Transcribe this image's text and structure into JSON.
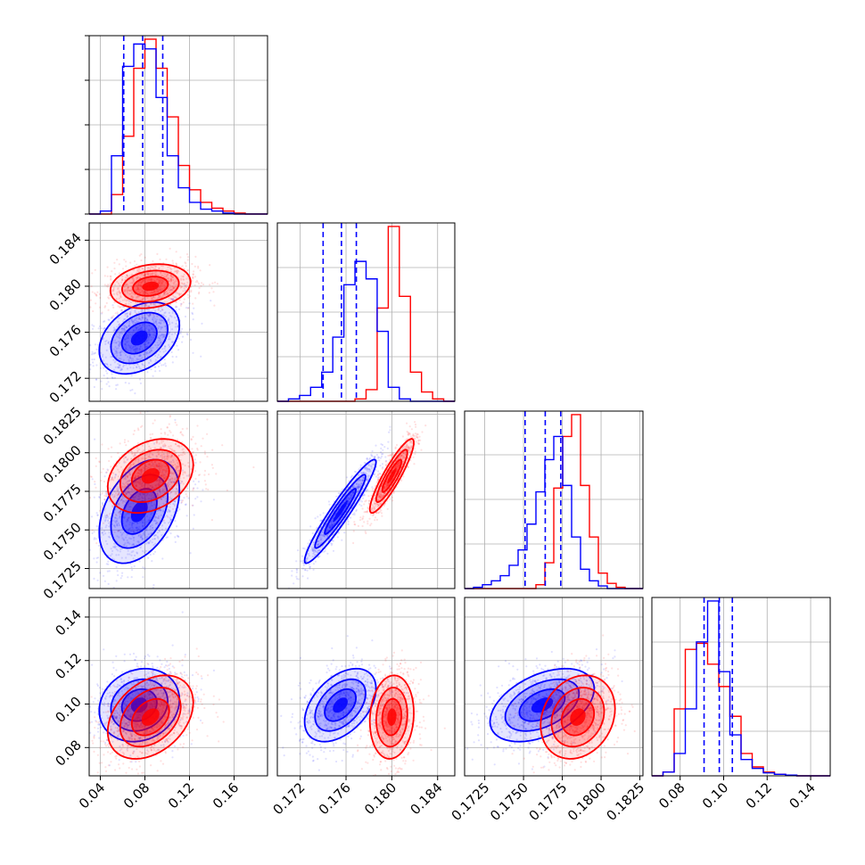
{
  "chart_data": {
    "type": "corner",
    "series": [
      {
        "name": "",
        "color": "#0000ff"
      },
      {
        "name": "",
        "color": "#ff0000"
      }
    ],
    "axes_ranges": [
      [
        0.03,
        0.19
      ],
      [
        0.17,
        0.1855
      ],
      [
        0.1712,
        0.1827
      ],
      [
        0.067,
        0.149
      ]
    ],
    "tick_labels": [
      [
        "0.04",
        "0.08",
        "0.12",
        "0.16"
      ],
      [
        "0.172",
        "0.176",
        "0.180",
        "0.184"
      ],
      [
        "0.1725",
        "0.1750",
        "0.1775",
        "0.1800",
        "0.1825"
      ],
      [
        "0.08",
        "0.10",
        "0.12",
        "0.14"
      ]
    ],
    "grid": true,
    "quantile_lines_blue": [
      [
        0.061,
        0.078,
        0.096
      ],
      [
        0.174,
        0.1756,
        0.1769
      ],
      [
        0.1751,
        0.1764,
        0.1774
      ],
      [
        0.091,
        0.098,
        0.104
      ]
    ],
    "histograms": {
      "bins_x": [
        [
          0.03,
          0.19,
          16
        ],
        [
          0.17,
          0.1855,
          16
        ],
        [
          0.1712,
          0.1827,
          20
        ],
        [
          0.067,
          0.149,
          16
        ]
      ],
      "blue": [
        [
          0,
          3,
          60,
          152,
          175,
          170,
          120,
          60,
          27,
          12,
          5,
          3,
          1,
          0,
          0,
          0
        ],
        [
          0,
          2,
          5,
          12,
          25,
          55,
          100,
          120,
          105,
          60,
          12,
          2,
          0,
          0,
          0,
          0
        ],
        [
          0,
          1,
          3,
          6,
          10,
          18,
          30,
          50,
          75,
          100,
          118,
          80,
          40,
          15,
          6,
          2,
          0,
          0,
          0,
          0
        ],
        [
          0,
          5,
          30,
          90,
          180,
          235,
          140,
          55,
          22,
          10,
          4,
          2,
          1,
          0,
          0,
          0
        ]
      ],
      "red": [
        [
          0,
          0,
          20,
          80,
          150,
          180,
          150,
          100,
          50,
          25,
          12,
          6,
          3,
          1,
          0,
          0
        ],
        [
          0,
          0,
          0,
          0,
          0,
          0,
          0,
          2,
          10,
          80,
          150,
          90,
          25,
          8,
          2,
          0
        ],
        [
          0,
          0,
          0,
          0,
          0,
          0,
          0,
          0,
          3,
          20,
          78,
          118,
          135,
          80,
          40,
          12,
          4,
          1,
          0,
          0
        ],
        [
          0,
          5,
          90,
          170,
          178,
          150,
          120,
          80,
          30,
          12,
          5,
          2,
          1,
          0,
          0,
          0
        ]
      ]
    },
    "pair_distributions": [
      {
        "row": 1,
        "col": 0,
        "blue": {
          "mean": [
            0.075,
            0.1755
          ],
          "sd": [
            0.015,
            0.0013
          ],
          "rho": 0.35
        },
        "red": {
          "mean": [
            0.085,
            0.18
          ],
          "sd": [
            0.015,
            0.0008
          ],
          "rho": 0.2
        }
      },
      {
        "row": 2,
        "col": 0,
        "blue": {
          "mean": [
            0.075,
            0.1762
          ],
          "sd": [
            0.015,
            0.0014
          ],
          "rho": 0.4
        },
        "red": {
          "mean": [
            0.085,
            0.1785
          ],
          "sd": [
            0.016,
            0.001
          ],
          "rho": 0.3
        }
      },
      {
        "row": 2,
        "col": 1,
        "blue": {
          "mean": [
            0.1755,
            0.1762
          ],
          "sd": [
            0.0013,
            0.0014
          ],
          "rho": 0.95
        },
        "red": {
          "mean": [
            0.18,
            0.1785
          ],
          "sd": [
            0.0008,
            0.001
          ],
          "rho": 0.9
        }
      },
      {
        "row": 3,
        "col": 0,
        "blue": {
          "mean": [
            0.075,
            0.0995
          ],
          "sd": [
            0.015,
            0.007
          ],
          "rho": 0.15
        },
        "red": {
          "mean": [
            0.085,
            0.094
          ],
          "sd": [
            0.016,
            0.008
          ],
          "rho": 0.35
        }
      },
      {
        "row": 3,
        "col": 1,
        "blue": {
          "mean": [
            0.1755,
            0.0995
          ],
          "sd": [
            0.0013,
            0.007
          ],
          "rho": 0.45
        },
        "red": {
          "mean": [
            0.18,
            0.094
          ],
          "sd": [
            0.0008,
            0.008
          ],
          "rho": 0.1
        }
      },
      {
        "row": 3,
        "col": 2,
        "blue": {
          "mean": [
            0.1762,
            0.0995
          ],
          "sd": [
            0.0014,
            0.007
          ],
          "rho": 0.45
        },
        "red": {
          "mean": [
            0.1785,
            0.094
          ],
          "sd": [
            0.001,
            0.008
          ],
          "rho": 0.2
        }
      }
    ]
  }
}
